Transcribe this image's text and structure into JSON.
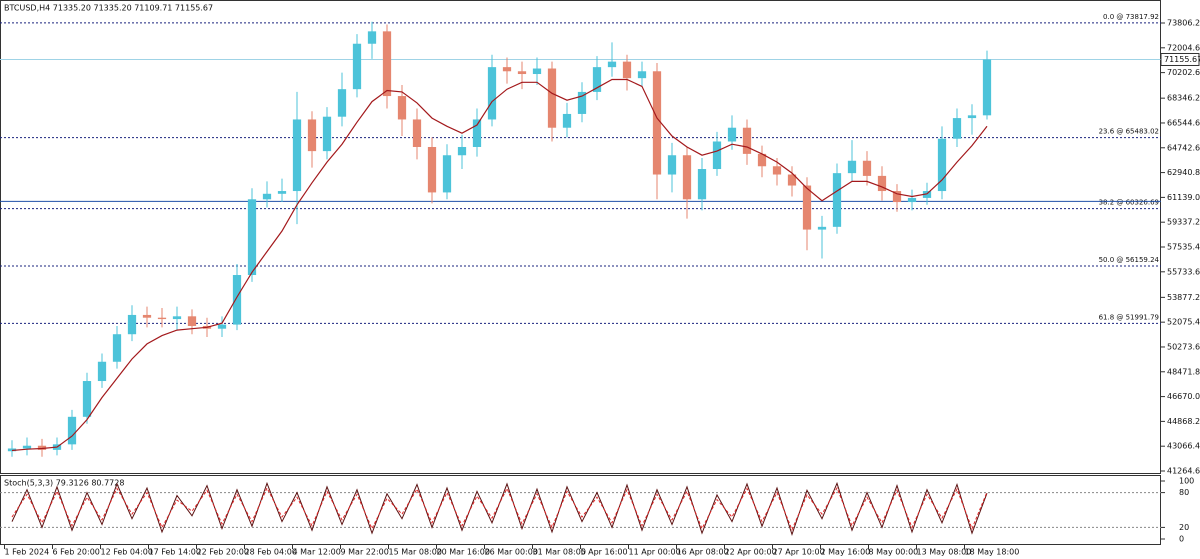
{
  "chart_data": [
    {
      "type": "candlestick",
      "title": "BTCUSD,H4  71335.20 71335.20 71109.71 71155.67",
      "x": [
        5,
        15,
        25,
        35,
        45,
        55,
        65,
        75,
        85,
        95,
        105,
        115,
        125,
        135,
        145,
        155,
        165,
        175,
        185,
        195,
        205,
        215,
        225,
        235,
        245,
        255,
        265,
        275,
        285,
        295,
        305,
        315,
        325,
        335,
        345,
        355,
        365,
        375,
        385,
        395,
        405,
        415,
        425,
        435,
        445,
        455,
        465,
        475,
        485,
        495,
        505,
        515,
        525,
        535,
        545,
        555,
        565,
        575,
        585,
        595,
        605,
        615,
        625,
        635,
        645,
        655
      ],
      "open": [
        42700,
        42900,
        43100,
        42800,
        43200,
        45200,
        47800,
        49200,
        51200,
        52600,
        52400,
        52300,
        52500,
        51800,
        51600,
        51900,
        55500,
        61000,
        61400,
        61600,
        66800,
        64500,
        67000,
        69000,
        72300,
        73200,
        68500,
        66800,
        64800,
        61500,
        64200,
        64800,
        66800,
        70600,
        70300,
        70100,
        70500,
        66200,
        67200,
        68800,
        70600,
        71000,
        69800,
        70300,
        62800,
        64200,
        61000,
        63200,
        65200,
        66200,
        64300,
        63400,
        62800,
        62000,
        58800,
        59000,
        62900,
        63800,
        62700,
        61600,
        60800,
        61100,
        61600,
        65400,
        66900,
        67100
      ],
      "high": [
        43500,
        43700,
        43600,
        43700,
        45700,
        48400,
        49800,
        51800,
        53300,
        53200,
        53100,
        53200,
        53000,
        52400,
        52500,
        56300,
        61800,
        62300,
        62500,
        68800,
        67400,
        67700,
        70200,
        73000,
        73900,
        73700,
        69300,
        67600,
        65500,
        65000,
        65700,
        67600,
        71500,
        71300,
        71000,
        71300,
        71000,
        68000,
        69500,
        71400,
        72400,
        71500,
        71000,
        70900,
        65100,
        64800,
        64000,
        65900,
        67100,
        66800,
        64900,
        64000,
        63400,
        62600,
        59800,
        63600,
        65300,
        64500,
        63400,
        62100,
        61700,
        62200,
        66300,
        67600,
        67900,
        71800
      ],
      "low": [
        42300,
        42400,
        42300,
        42400,
        42800,
        44700,
        47300,
        48700,
        50700,
        51700,
        51700,
        51500,
        51200,
        51000,
        51000,
        51500,
        55000,
        60400,
        60800,
        59200,
        63300,
        63900,
        66300,
        68400,
        71200,
        67600,
        65600,
        63900,
        60700,
        61000,
        63200,
        64100,
        66300,
        69400,
        69000,
        69300,
        65200,
        65500,
        66600,
        68200,
        69900,
        68900,
        69200,
        61000,
        61500,
        59600,
        60200,
        62700,
        64600,
        63500,
        62600,
        62000,
        61200,
        57300,
        56700,
        58500,
        62300,
        62000,
        60900,
        60100,
        60200,
        60600,
        61000,
        64800,
        65700,
        66800
      ],
      "close": [
        42900,
        43100,
        42800,
        43200,
        45200,
        47800,
        49200,
        51200,
        52600,
        52400,
        52300,
        52500,
        51800,
        51600,
        51900,
        55500,
        61000,
        61400,
        61600,
        66800,
        64500,
        67000,
        69000,
        72300,
        73200,
        68500,
        66800,
        64800,
        61500,
        64200,
        64800,
        66800,
        70600,
        70300,
        70100,
        70500,
        66200,
        67200,
        68800,
        70600,
        71000,
        69800,
        70300,
        62800,
        64200,
        61000,
        63200,
        65200,
        66200,
        64300,
        63400,
        62800,
        62000,
        58800,
        59000,
        62900,
        63800,
        62700,
        61600,
        60800,
        61100,
        61600,
        65400,
        66900,
        67100,
        71155.67
      ],
      "up_color": "#4cc3d9",
      "down_color": "#e5866f",
      "lines": [
        {
          "color": "#a3191c",
          "values": [
            42750,
            42850,
            42900,
            43000,
            43800,
            45000,
            46600,
            48000,
            49400,
            50500,
            51100,
            51500,
            51600,
            51700,
            52000,
            53900,
            55700,
            57200,
            58700,
            60600,
            62200,
            63700,
            65000,
            66600,
            68100,
            68900,
            68800,
            68000,
            66900,
            66300,
            65800,
            66400,
            68100,
            69000,
            69500,
            69500,
            68700,
            68200,
            68500,
            69100,
            69700,
            69700,
            69200,
            66900,
            65600,
            64800,
            64200,
            64500,
            65000,
            64800,
            64300,
            63700,
            62900,
            61800,
            60900,
            61600,
            62300,
            62300,
            61900,
            61400,
            61200,
            61400,
            62400,
            63700,
            64900,
            66300
          ]
        }
      ],
      "xlim": [
        -3,
        771
      ],
      "xticks": [
        {
          "value": 0,
          "label": "1 Feb 2024"
        },
        {
          "value": 32,
          "label": "6 Feb 20:00"
        },
        {
          "value": 64,
          "label": "12 Feb 04:00"
        },
        {
          "value": 96,
          "label": "17 Feb 14:00"
        },
        {
          "value": 128,
          "label": "22 Feb 20:00"
        },
        {
          "value": 160,
          "label": "28 Feb 04:00"
        },
        {
          "value": 192,
          "label": "4 Mar 12:00"
        },
        {
          "value": 224,
          "label": "9 Mar 22:00"
        },
        {
          "value": 256,
          "label": "15 Mar 08:00"
        },
        {
          "value": 288,
          "label": "20 Mar 16:00"
        },
        {
          "value": 320,
          "label": "26 Mar 00:00"
        },
        {
          "value": 352,
          "label": "31 Mar 08:00"
        },
        {
          "value": 384,
          "label": "5 Apr 16:00"
        },
        {
          "value": 416,
          "label": "11 Apr 00:00"
        },
        {
          "value": 448,
          "label": "16 Apr 08:00"
        },
        {
          "value": 480,
          "label": "22 Apr 00:00"
        },
        {
          "value": 512,
          "label": "27 Apr 10:00"
        },
        {
          "value": 544,
          "label": "2 May 16:00"
        },
        {
          "value": 576,
          "label": "8 May 00:00"
        },
        {
          "value": 608,
          "label": "13 May 08:00"
        },
        {
          "value": 640,
          "label": "18 May 18:00"
        }
      ],
      "ylim": [
        41119,
        75477
      ],
      "yticks": [
        {
          "value": 73806.2,
          "label": "73806.20"
        },
        {
          "value": 72004.6,
          "label": "72004.60"
        },
        {
          "value": 70202.6,
          "label": "70202.60"
        },
        {
          "value": 68346.2,
          "label": "68346.20"
        },
        {
          "value": 66544.6,
          "label": "66544.60"
        },
        {
          "value": 64742.6,
          "label": "64742.60"
        },
        {
          "value": 62940.8,
          "label": "62940.80"
        },
        {
          "value": 61139,
          "label": "61139.00"
        },
        {
          "value": 59337.2,
          "label": "59337.20"
        },
        {
          "value": 57535.4,
          "label": "57535.40"
        },
        {
          "value": 55733.6,
          "label": "55733.60"
        },
        {
          "value": 53877.2,
          "label": "53877.20"
        },
        {
          "value": 52075.4,
          "label": "52075.40"
        },
        {
          "value": 50273.6,
          "label": "50273.60"
        },
        {
          "value": 48471.8,
          "label": "48471.80"
        },
        {
          "value": 46670,
          "label": "46670.00"
        },
        {
          "value": 44868.2,
          "label": "44868.20"
        },
        {
          "value": 43066.4,
          "label": "43066.40"
        },
        {
          "value": 41264.6,
          "label": "41264.60"
        }
      ],
      "fib_levels": [
        {
          "value": 73817.92,
          "label": "0.0 @ 73817.92"
        },
        {
          "value": 65483.02,
          "label": "23.6 @ 65483.02"
        },
        {
          "value": 60326.69,
          "label": "38.2 @ 60326.69"
        },
        {
          "value": 56159.24,
          "label": "50.0 @ 56159.24"
        },
        {
          "value": 51991.79,
          "label": "61.8 @ 51991.79"
        }
      ],
      "fib_color": "#1a237e",
      "hlines": [
        {
          "value": 60850,
          "color": "#1f4fa8"
        }
      ],
      "last_price": 71155.67,
      "last_price_color": "#9fd3e6"
    },
    {
      "type": "line",
      "title": "Stoch(5,3,3) 79.3126 80.7728",
      "ylim": [
        0,
        100
      ],
      "yticks": [
        0,
        20,
        80,
        100
      ],
      "levels": [
        20,
        80
      ],
      "series": [
        {
          "color": "#5a1010",
          "values": [
            30,
            85,
            20,
            90,
            15,
            80,
            25,
            95,
            35,
            88,
            12,
            75,
            40,
            92,
            18,
            85,
            22,
            96,
            30,
            80,
            15,
            90,
            25,
            85,
            10,
            78,
            35,
            94,
            20,
            88,
            15,
            82,
            28,
            95,
            18,
            86,
            12,
            90,
            30,
            80,
            20,
            93,
            15,
            85,
            25,
            90,
            10,
            76,
            30,
            95,
            22,
            88,
            8,
            84,
            35,
            96,
            15,
            80,
            20,
            92,
            12,
            85,
            28,
            94,
            10,
            79
          ]
        },
        {
          "color": "#e02424",
          "values": [
            38,
            77,
            28,
            82,
            23,
            72,
            33,
            87,
            43,
            80,
            20,
            67,
            48,
            84,
            26,
            77,
            30,
            88,
            38,
            72,
            23,
            82,
            33,
            77,
            18,
            70,
            43,
            86,
            28,
            80,
            23,
            74,
            36,
            87,
            26,
            78,
            20,
            82,
            38,
            72,
            28,
            85,
            23,
            77,
            33,
            82,
            18,
            68,
            38,
            87,
            30,
            80,
            16,
            76,
            43,
            88,
            23,
            72,
            28,
            84,
            20,
            77,
            36,
            86,
            18,
            81
          ]
        }
      ]
    }
  ]
}
